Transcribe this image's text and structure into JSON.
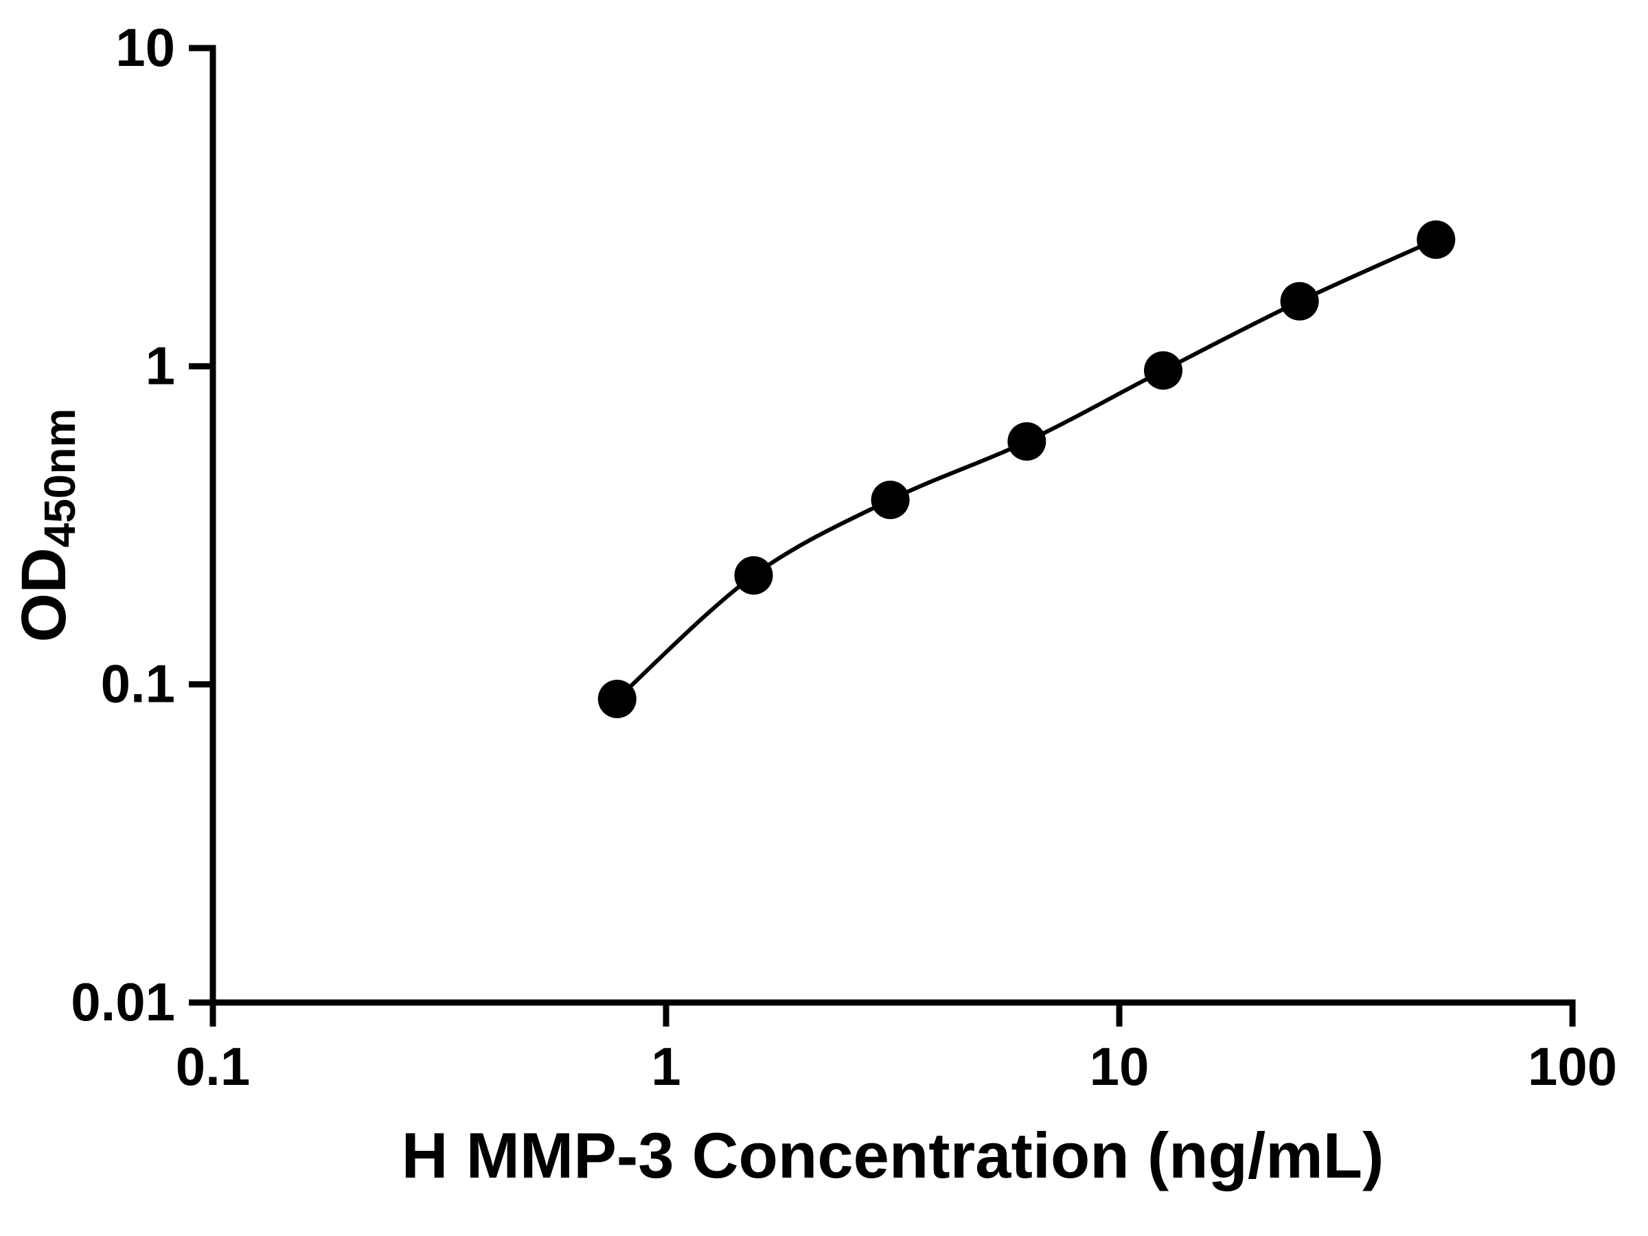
{
  "chart_data": {
    "type": "scatter",
    "title": "",
    "xlabel": "H MMP-3 Concentration (ng/mL)",
    "ylabel": "OD450nm",
    "ylabel_main": "OD",
    "ylabel_sub": "450nm",
    "x": [
      0.78,
      1.56,
      3.125,
      6.25,
      12.5,
      25,
      50
    ],
    "y": [
      0.09,
      0.22,
      0.38,
      0.58,
      0.97,
      1.6,
      2.5
    ],
    "xscale": "log",
    "yscale": "log",
    "xlim": [
      0.1,
      100
    ],
    "ylim": [
      0.01,
      10
    ],
    "x_tick_values": [
      0.1,
      1,
      10,
      100
    ],
    "x_tick_labels": [
      "0.1",
      "1",
      "10",
      "100"
    ],
    "y_tick_values": [
      0.01,
      0.1,
      1,
      10
    ],
    "y_tick_labels": [
      "0.01",
      "0.1",
      "1",
      "10"
    ],
    "grid": "off",
    "legend": "none",
    "line_color": "#000000",
    "marker_color": "#000000",
    "background_color": "#ffffff"
  }
}
